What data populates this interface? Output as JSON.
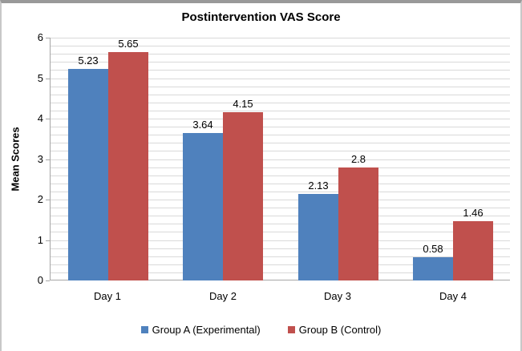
{
  "chart_data": {
    "type": "bar",
    "title": "Postintervention VAS Score",
    "ylabel": "Mean Scores",
    "xlabel": "",
    "categories": [
      "Day 1",
      "Day 2",
      "Day 3",
      "Day 4"
    ],
    "series": [
      {
        "name": "Group A (Experimental)",
        "color": "#4F81BD",
        "values": [
          5.23,
          3.64,
          2.13,
          0.58
        ],
        "data_labels": [
          "5.23",
          "3.64",
          "2.13",
          "0.58"
        ]
      },
      {
        "name": "Group B (Control)",
        "color": "#C0504D",
        "values": [
          5.65,
          4.15,
          2.8,
          1.46
        ],
        "data_labels": [
          "5.65",
          "4.15",
          "2.8",
          "1.46"
        ]
      }
    ],
    "ylim": [
      0,
      6
    ],
    "y_major_ticks": [
      0,
      1,
      2,
      3,
      4,
      5,
      6
    ],
    "y_minor_step": 0.2,
    "grid": true,
    "legend_position": "bottom"
  },
  "colors": {
    "series_a": "#4F81BD",
    "series_b": "#C0504D",
    "gridline": "#D9D9D9",
    "axis_line": "#A6A6A6",
    "text": "#000000",
    "frame_top": "#999999",
    "frame_side": "#C8C8C8",
    "background": "#FFFFFF"
  }
}
